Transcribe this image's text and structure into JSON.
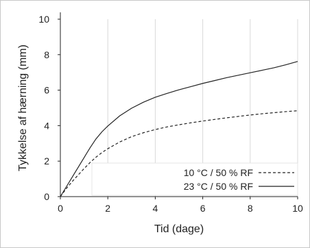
{
  "chart_data": {
    "type": "line",
    "xlabel": "Tid (dage)",
    "ylabel": "Tykkelse af hærning (mm)",
    "xlim": [
      0,
      10
    ],
    "ylim": [
      0,
      10
    ],
    "xticks": [
      "0",
      "2",
      "4",
      "6",
      "8",
      "10"
    ],
    "yticks": [
      "0",
      "2",
      "4",
      "6",
      "8",
      "10"
    ],
    "xtick_values": [
      0,
      2,
      4,
      6,
      8,
      10
    ],
    "ytick_values": [
      0,
      2,
      4,
      6,
      8,
      10
    ],
    "grid": "vertical",
    "legend_position": "bottom-right",
    "x": [
      0,
      0.25,
      0.5,
      0.75,
      1,
      1.25,
      1.5,
      1.75,
      2,
      2.5,
      3,
      3.5,
      4,
      4.5,
      5,
      5.5,
      6,
      6.5,
      7,
      7.5,
      8,
      8.5,
      9,
      9.5,
      10
    ],
    "series": [
      {
        "name": "10 °C / 50 % RF",
        "style": "dashed",
        "color": "#222222",
        "values": [
          0,
          0.45,
          0.85,
          1.22,
          1.58,
          1.92,
          2.22,
          2.48,
          2.7,
          3.08,
          3.38,
          3.6,
          3.78,
          3.93,
          4.05,
          4.16,
          4.26,
          4.35,
          4.44,
          4.52,
          4.6,
          4.67,
          4.73,
          4.79,
          4.84
        ]
      },
      {
        "name": "23 °C / 50 % RF",
        "style": "solid",
        "color": "#222222",
        "values": [
          0,
          0.55,
          1.1,
          1.65,
          2.2,
          2.75,
          3.25,
          3.65,
          3.98,
          4.55,
          4.98,
          5.32,
          5.6,
          5.82,
          6.02,
          6.2,
          6.38,
          6.54,
          6.7,
          6.84,
          6.98,
          7.12,
          7.26,
          7.43,
          7.62
        ]
      }
    ]
  }
}
